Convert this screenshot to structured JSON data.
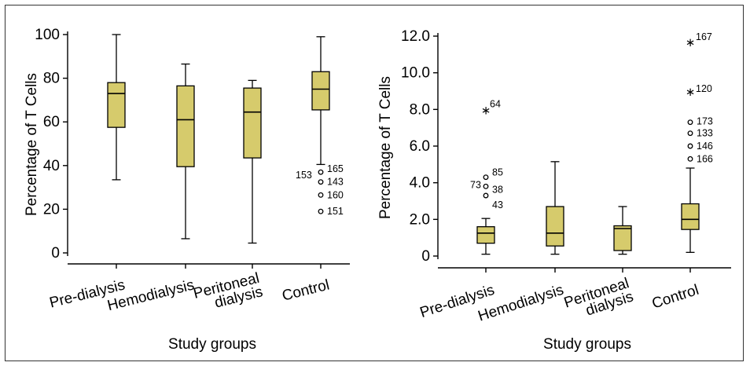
{
  "chart_data": [
    {
      "type": "box",
      "xlabel": "Study groups",
      "ylabel": "Percentage of T Cells",
      "ylim": [
        0,
        100
      ],
      "yticks": [
        "0",
        "20",
        "40",
        "60",
        "80",
        "100"
      ],
      "categories": [
        "Pre-dialysis",
        "Hemodialysis",
        "Peritoneal dialysis",
        "Control"
      ],
      "boxes": [
        {
          "min": 33.5,
          "q1": 57.5,
          "median": 73,
          "q3": 78,
          "max": 100
        },
        {
          "min": 6.5,
          "q1": 39.5,
          "median": 61,
          "q3": 76.5,
          "max": 86.5
        },
        {
          "min": 4.5,
          "q1": 43.5,
          "median": 64.5,
          "q3": 75.5,
          "max": 79
        },
        {
          "min": 40.5,
          "q1": 65.5,
          "median": 75,
          "q3": 83,
          "max": 99
        }
      ],
      "outliers": [
        {
          "category": 3,
          "value": 37,
          "marker": "circle",
          "labels": [
            "153",
            "165"
          ]
        },
        {
          "category": 3,
          "value": 32.5,
          "marker": "circle",
          "labels": [
            "143"
          ]
        },
        {
          "category": 3,
          "value": 26.5,
          "marker": "circle",
          "labels": [
            "160"
          ]
        },
        {
          "category": 3,
          "value": 19,
          "marker": "circle",
          "labels": [
            "151"
          ]
        }
      ],
      "color": "#d6cb6c"
    },
    {
      "type": "box",
      "xlabel": "Study groups",
      "ylabel": "Percentage of T Cells",
      "ylim": [
        0,
        12
      ],
      "yticks": [
        "0",
        "2.0",
        "4.0",
        "6.0",
        "8.0",
        "10.0",
        "12.0"
      ],
      "categories": [
        "Pre-dialysis",
        "Hemodialysis",
        "Peritoneal dialysis",
        "Control"
      ],
      "boxes": [
        {
          "min": 0.1,
          "q1": 0.7,
          "median": 1.25,
          "q3": 1.6,
          "max": 2.05
        },
        {
          "min": 0.1,
          "q1": 0.55,
          "median": 1.25,
          "q3": 2.7,
          "max": 5.15
        },
        {
          "min": 0.1,
          "q1": 0.3,
          "median": 1.5,
          "q3": 1.65,
          "max": 2.7
        },
        {
          "min": 0.2,
          "q1": 1.45,
          "median": 2.0,
          "q3": 2.85,
          "max": 4.8
        }
      ],
      "outliers": [
        {
          "category": 0,
          "value": 8.0,
          "marker": "star",
          "labels": [
            "64"
          ]
        },
        {
          "category": 0,
          "value": 4.3,
          "marker": "circle",
          "labels": [
            "85"
          ]
        },
        {
          "category": 0,
          "value": 3.8,
          "marker": "circle",
          "labels": [
            "73",
            "38"
          ]
        },
        {
          "category": 0,
          "value": 3.3,
          "marker": "circle",
          "labels": [
            "43"
          ]
        },
        {
          "category": 3,
          "value": 11.7,
          "marker": "star",
          "labels": [
            "167"
          ]
        },
        {
          "category": 3,
          "value": 9.0,
          "marker": "star",
          "labels": [
            "120"
          ]
        },
        {
          "category": 3,
          "value": 7.3,
          "marker": "circle",
          "labels": [
            "173"
          ]
        },
        {
          "category": 3,
          "value": 6.7,
          "marker": "circle",
          "labels": [
            "133"
          ]
        },
        {
          "category": 3,
          "value": 6.0,
          "marker": "circle",
          "labels": [
            "146"
          ]
        },
        {
          "category": 3,
          "value": 5.3,
          "marker": "circle",
          "labels": [
            "166"
          ]
        }
      ],
      "color": "#d6cb6c"
    }
  ]
}
